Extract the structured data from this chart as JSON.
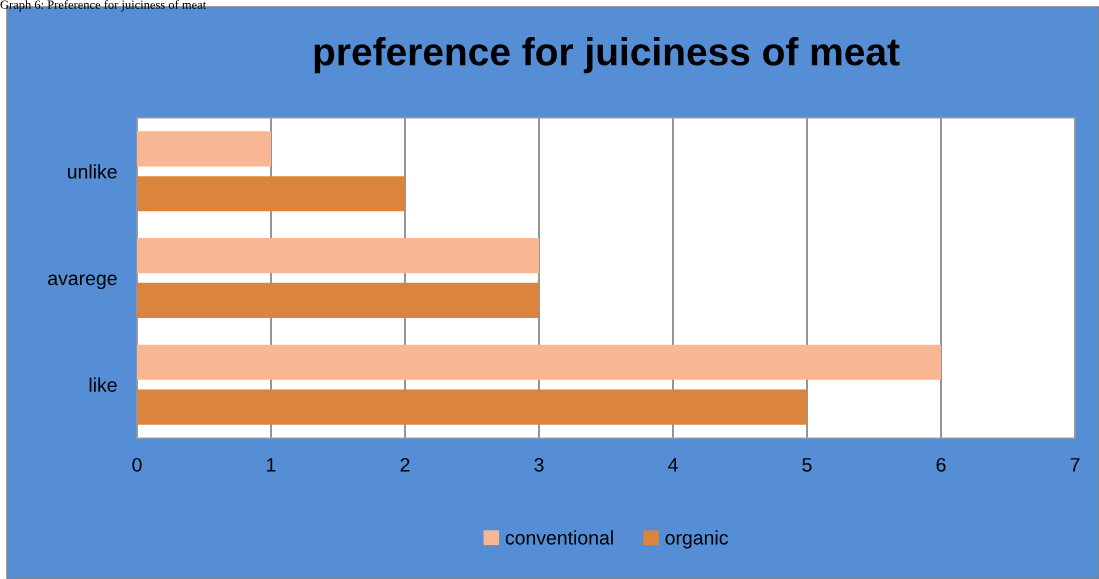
{
  "chart_data": {
    "type": "bar",
    "orientation": "horizontal",
    "title": "preference for juiciness of meat",
    "annotations": [
      "Graph 6: Preference for juiciness of meat"
    ],
    "categories": [
      "unlike",
      "avarege",
      "like"
    ],
    "series": [
      {
        "name": "conventional",
        "color": "#f9b692",
        "values": [
          1,
          3,
          6
        ]
      },
      {
        "name": "organic",
        "color": "#db843d",
        "values": [
          2,
          3,
          5
        ]
      }
    ],
    "xlim": [
      0,
      7
    ],
    "xticks": [
      0,
      1,
      2,
      3,
      4,
      5,
      6,
      7
    ],
    "grid": "x",
    "legend": "bottom"
  }
}
